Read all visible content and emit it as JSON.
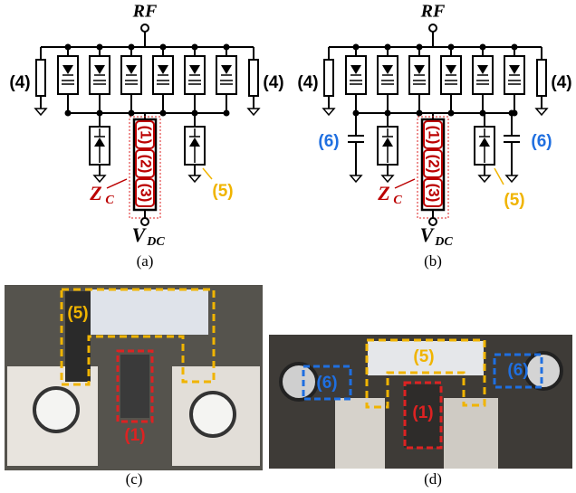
{
  "panels": [
    {
      "caption": "(a)",
      "labels": {
        "rf": "RF",
        "left": "(4)",
        "right": "(4)",
        "stack": [
          "(1)",
          "(2)",
          "(3)"
        ],
        "z": "Z",
        "z_sub": "C",
        "diode": "(5)",
        "vdc": "V",
        "vdc_sub": "DC"
      }
    },
    {
      "caption": "(b)",
      "labels": {
        "rf": "RF",
        "left": "(4)",
        "right": "(4)",
        "stack": [
          "(1)",
          "(2)",
          "(3)"
        ],
        "z": "Z",
        "z_sub": "C",
        "diode": "(5)",
        "vdc": "V",
        "vdc_sub": "DC",
        "cap_left": "(6)",
        "cap_right": "(6)"
      }
    },
    {
      "caption": "(c)",
      "labels": [
        "(5)",
        "(1)"
      ]
    },
    {
      "caption": "(d)",
      "labels": [
        "(6)",
        "(5)",
        "(6)",
        "(1)"
      ]
    }
  ]
}
